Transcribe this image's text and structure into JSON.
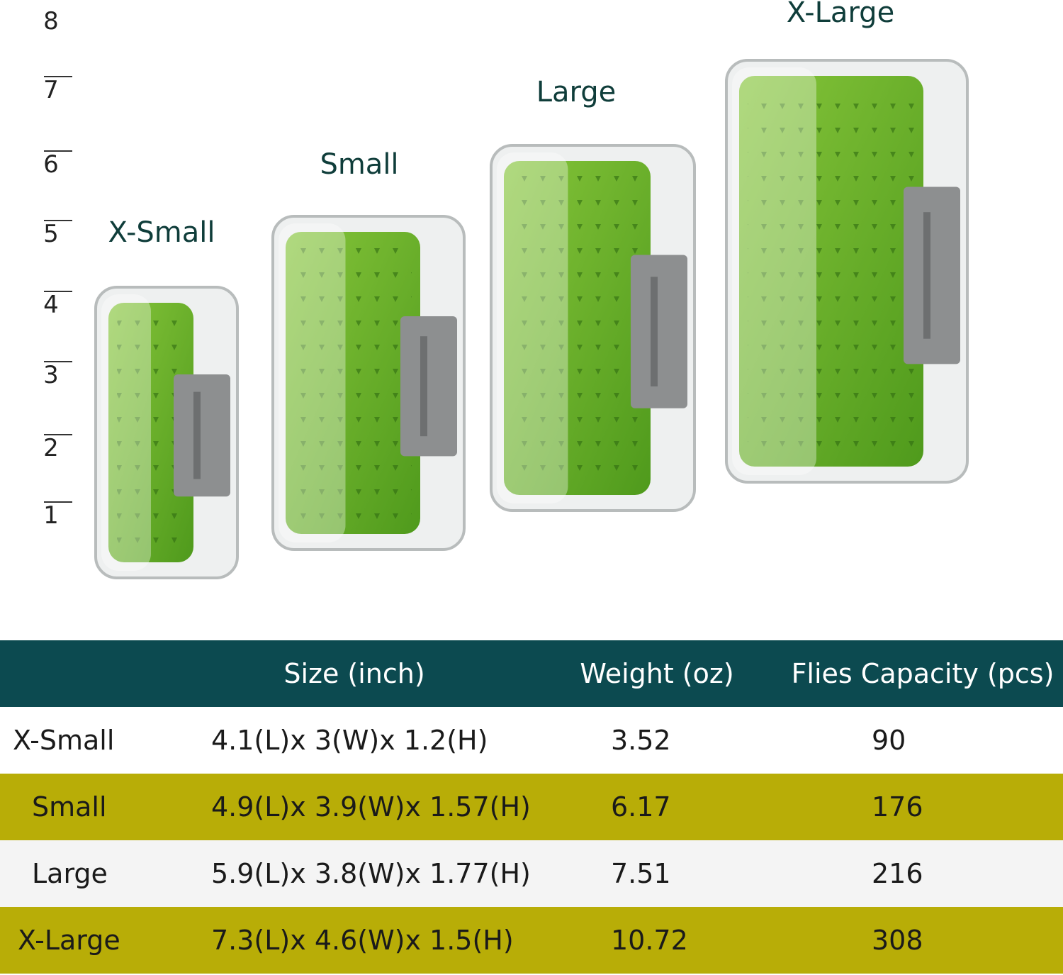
{
  "ruler": {
    "labels": [
      "8",
      "7",
      "6",
      "5",
      "4",
      "3",
      "2",
      "1"
    ]
  },
  "boxes": [
    {
      "label": "X-Small"
    },
    {
      "label": "Small"
    },
    {
      "label": "Large"
    },
    {
      "label": "X-Large"
    }
  ],
  "table": {
    "header": [
      "Size (inch)",
      "Weight (oz)",
      "Flies Capacity (pcs)"
    ],
    "rows": [
      [
        "X-Small",
        "4.1(L)x 3(W)x 1.2(H)",
        "3.52",
        "90"
      ],
      [
        "Small",
        "4.9(L)x 3.9(W)x 1.57(H)",
        "6.17",
        "176"
      ],
      [
        "Large",
        "5.9(L)x 3.8(W)x 1.77(H)",
        "7.51",
        "216"
      ],
      [
        "X-Large",
        "7.3(L)x 4.6(W)x 1.5(H)",
        "10.72",
        "308"
      ]
    ]
  }
}
